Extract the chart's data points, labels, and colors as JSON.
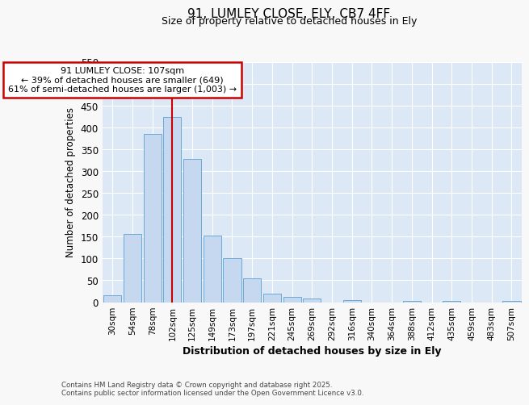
{
  "title_line1": "91, LUMLEY CLOSE, ELY, CB7 4FF",
  "title_line2": "Size of property relative to detached houses in Ely",
  "xlabel": "Distribution of detached houses by size in Ely",
  "ylabel": "Number of detached properties",
  "bar_labels": [
    "30sqm",
    "54sqm",
    "78sqm",
    "102sqm",
    "125sqm",
    "149sqm",
    "173sqm",
    "197sqm",
    "221sqm",
    "245sqm",
    "269sqm",
    "292sqm",
    "316sqm",
    "340sqm",
    "364sqm",
    "388sqm",
    "412sqm",
    "435sqm",
    "459sqm",
    "483sqm",
    "507sqm"
  ],
  "bar_values": [
    15,
    157,
    385,
    425,
    328,
    153,
    101,
    55,
    20,
    12,
    8,
    0,
    4,
    0,
    0,
    3,
    0,
    3,
    0,
    0,
    2
  ],
  "bar_color": "#c5d8f0",
  "bar_edge_color": "#6aaad4",
  "vline_x": 3,
  "vline_color": "#cc0000",
  "annotation_text": "91 LUMLEY CLOSE: 107sqm\n← 39% of detached houses are smaller (649)\n61% of semi-detached houses are larger (1,003) →",
  "annotation_box_facecolor": "#ffffff",
  "annotation_box_edgecolor": "#cc0000",
  "ylim": [
    0,
    550
  ],
  "yticks": [
    0,
    50,
    100,
    150,
    200,
    250,
    300,
    350,
    400,
    450,
    500,
    550
  ],
  "background_color": "#dce8f5",
  "grid_color": "#ffffff",
  "fig_facecolor": "#f8f8f8",
  "footnote": "Contains HM Land Registry data © Crown copyright and database right 2025.\nContains public sector information licensed under the Open Government Licence v3.0."
}
